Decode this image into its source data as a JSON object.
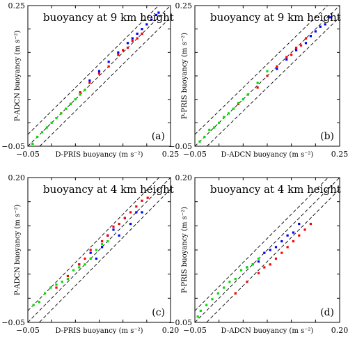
{
  "chart_data": [
    {
      "type": "scatter",
      "panel_label": "(a)",
      "title": "buoyancy at 9 km height",
      "xlabel": "D-PRIS buoyancy (m s⁻²)",
      "ylabel": "P-ADCN buoyancy (m s⁻²)",
      "xlim": [
        -0.05,
        0.25
      ],
      "ylim": [
        -0.05,
        0.25
      ],
      "ticks": [
        "−0.05",
        "0.25"
      ],
      "reference_lines": [
        "y = x",
        "y = x + 0.025",
        "y = x − 0.025"
      ],
      "series": [
        {
          "color": "#0000ff",
          "points": [
            [
              0.08,
              0.09
            ],
            [
              0.1,
              0.11
            ],
            [
              0.12,
              0.13
            ],
            [
              0.14,
              0.15
            ],
            [
              0.16,
              0.17
            ],
            [
              0.17,
              0.18
            ],
            [
              0.18,
              0.19
            ],
            [
              0.19,
              0.2
            ],
            [
              0.2,
              0.21
            ],
            [
              0.21,
              0.22
            ],
            [
              0.22,
              0.23
            ],
            [
              0.225,
              0.235
            ]
          ]
        },
        {
          "color": "#ff0000",
          "points": [
            [
              0.02,
              0.02
            ],
            [
              0.04,
              0.04
            ],
            [
              0.06,
              0.065
            ],
            [
              0.08,
              0.085
            ],
            [
              0.1,
              0.105
            ],
            [
              0.12,
              0.12
            ],
            [
              0.14,
              0.145
            ],
            [
              0.15,
              0.155
            ],
            [
              0.16,
              0.16
            ],
            [
              0.17,
              0.175
            ],
            [
              0.18,
              0.18
            ],
            [
              0.19,
              0.19
            ]
          ]
        },
        {
          "color": "#00dd00",
          "points": [
            [
              -0.04,
              -0.045
            ],
            [
              -0.03,
              -0.03
            ],
            [
              -0.02,
              -0.02
            ],
            [
              -0.01,
              -0.01
            ],
            [
              0.0,
              0.0
            ],
            [
              0.01,
              0.01
            ],
            [
              0.02,
              0.02
            ],
            [
              0.03,
              0.03
            ],
            [
              0.04,
              0.04
            ],
            [
              0.05,
              0.05
            ],
            [
              0.06,
              0.06
            ],
            [
              0.07,
              0.07
            ]
          ]
        }
      ]
    },
    {
      "type": "scatter",
      "panel_label": "(b)",
      "title": "buoyancy at 9 km height",
      "xlabel": "D-ADCN buoyancy (m s⁻²)",
      "ylabel": "P-PRIS buoyancy (m s⁻²)",
      "xlim": [
        -0.05,
        0.25
      ],
      "ylim": [
        -0.05,
        0.25
      ],
      "ticks": [
        "−0.05",
        "0.25"
      ],
      "reference_lines": [
        "y = x",
        "y = x + 0.025",
        "y = x − 0.025"
      ],
      "series": [
        {
          "color": "#0000ff",
          "points": [
            [
              0.12,
              0.115
            ],
            [
              0.14,
              0.135
            ],
            [
              0.16,
              0.155
            ],
            [
              0.18,
              0.17
            ],
            [
              0.19,
              0.185
            ],
            [
              0.2,
              0.195
            ],
            [
              0.21,
              0.205
            ],
            [
              0.22,
              0.21
            ],
            [
              0.23,
              0.225
            ]
          ]
        },
        {
          "color": "#ff0000",
          "points": [
            [
              0.04,
              0.04
            ],
            [
              0.06,
              0.06
            ],
            [
              0.08,
              0.075
            ],
            [
              0.1,
              0.1
            ],
            [
              0.12,
              0.12
            ],
            [
              0.14,
              0.14
            ],
            [
              0.15,
              0.145
            ],
            [
              0.16,
              0.16
            ],
            [
              0.17,
              0.165
            ],
            [
              0.18,
              0.18
            ]
          ]
        },
        {
          "color": "#00dd00",
          "points": [
            [
              -0.04,
              -0.04
            ],
            [
              -0.03,
              -0.03
            ],
            [
              -0.02,
              -0.015
            ],
            [
              -0.01,
              -0.01
            ],
            [
              0.0,
              0.0
            ],
            [
              0.01,
              0.012
            ],
            [
              0.02,
              0.02
            ],
            [
              0.03,
              0.03
            ],
            [
              0.04,
              0.042
            ],
            [
              0.05,
              0.05
            ],
            [
              0.06,
              0.06
            ],
            [
              0.08,
              0.085
            ],
            [
              0.1,
              0.11
            ]
          ]
        }
      ]
    },
    {
      "type": "scatter",
      "panel_label": "(c)",
      "title": "buoyancy at 4 km height",
      "xlabel": "D-PRIS buoyancy (m s⁻²)",
      "ylabel": "P-ADCN buoyancy (m s⁻²)",
      "xlim": [
        -0.05,
        0.2
      ],
      "ylim": [
        -0.05,
        0.2
      ],
      "ticks": [
        "−0.05",
        "0.20"
      ],
      "reference_lines": [
        "y = x",
        "y = x + 0.02",
        "y = x − 0.02"
      ],
      "series": [
        {
          "color": "#0000ff",
          "points": [
            [
              0.04,
              0.05
            ],
            [
              0.06,
              0.07
            ],
            [
              0.07,
              0.06
            ],
            [
              0.08,
              0.08
            ],
            [
              0.09,
              0.1
            ],
            [
              0.1,
              0.11
            ],
            [
              0.11,
              0.1
            ],
            [
              0.12,
              0.13
            ],
            [
              0.13,
              0.12
            ],
            [
              0.14,
              0.14
            ],
            [
              0.15,
              0.14
            ]
          ]
        },
        {
          "color": "#ff0000",
          "points": [
            [
              0.0,
              0.01
            ],
            [
              0.02,
              0.03
            ],
            [
              0.04,
              0.05
            ],
            [
              0.05,
              0.06
            ],
            [
              0.06,
              0.075
            ],
            [
              0.08,
              0.09
            ],
            [
              0.09,
              0.1
            ],
            [
              0.1,
              0.115
            ],
            [
              0.11,
              0.12
            ],
            [
              0.12,
              0.13
            ],
            [
              0.13,
              0.14
            ],
            [
              0.14,
              0.15
            ],
            [
              0.15,
              0.16
            ],
            [
              0.16,
              0.165
            ]
          ]
        },
        {
          "color": "#00dd00",
          "points": [
            [
              -0.04,
              -0.02
            ],
            [
              -0.03,
              -0.015
            ],
            [
              -0.02,
              0.0
            ],
            [
              -0.01,
              0.01
            ],
            [
              0.0,
              0.015
            ],
            [
              0.01,
              0.02
            ],
            [
              0.02,
              0.025
            ],
            [
              0.03,
              0.04
            ],
            [
              0.04,
              0.045
            ],
            [
              0.05,
              0.05
            ],
            [
              0.06,
              0.06
            ],
            [
              0.07,
              0.075
            ],
            [
              0.08,
              0.085
            ],
            [
              0.09,
              0.09
            ]
          ]
        }
      ]
    },
    {
      "type": "scatter",
      "panel_label": "(d)",
      "title": "buoyancy at 4 km height",
      "xlabel": "D-ADCN buoyancy (m s⁻²)",
      "ylabel": "P-PRIS buoyancy (m s⁻²)",
      "xlim": [
        -0.05,
        0.2
      ],
      "ylim": [
        -0.05,
        0.2
      ],
      "ticks": [
        "−0.05",
        "0.20"
      ],
      "reference_lines": [
        "y = x",
        "y = x + 0.02",
        "y = x − 0.02"
      ],
      "series": [
        {
          "color": "#0000ff",
          "points": [
            [
              0.04,
              0.045
            ],
            [
              0.05,
              0.05
            ],
            [
              0.06,
              0.055
            ],
            [
              0.07,
              0.07
            ],
            [
              0.08,
              0.075
            ],
            [
              0.09,
              0.08
            ],
            [
              0.1,
              0.09
            ],
            [
              0.11,
              0.1
            ],
            [
              0.12,
              0.105
            ],
            [
              0.13,
              0.12
            ]
          ]
        },
        {
          "color": "#ff0000",
          "points": [
            [
              0.02,
              0.0
            ],
            [
              0.04,
              0.02
            ],
            [
              0.06,
              0.035
            ],
            [
              0.07,
              0.045
            ],
            [
              0.08,
              0.05
            ],
            [
              0.09,
              0.06
            ],
            [
              0.1,
              0.07
            ],
            [
              0.11,
              0.08
            ],
            [
              0.12,
              0.09
            ],
            [
              0.13,
              0.1
            ],
            [
              0.14,
              0.11
            ],
            [
              0.15,
              0.12
            ]
          ]
        },
        {
          "color": "#00dd00",
          "points": [
            [
              -0.045,
              -0.04
            ],
            [
              -0.04,
              -0.03
            ],
            [
              -0.03,
              -0.02
            ],
            [
              -0.02,
              -0.01
            ],
            [
              -0.01,
              0.0
            ],
            [
              0.0,
              0.01
            ],
            [
              0.01,
              0.02
            ],
            [
              0.02,
              0.025
            ],
            [
              0.03,
              0.04
            ],
            [
              0.04,
              0.045
            ],
            [
              0.05,
              0.05
            ],
            [
              0.06,
              0.06
            ]
          ]
        }
      ]
    }
  ]
}
